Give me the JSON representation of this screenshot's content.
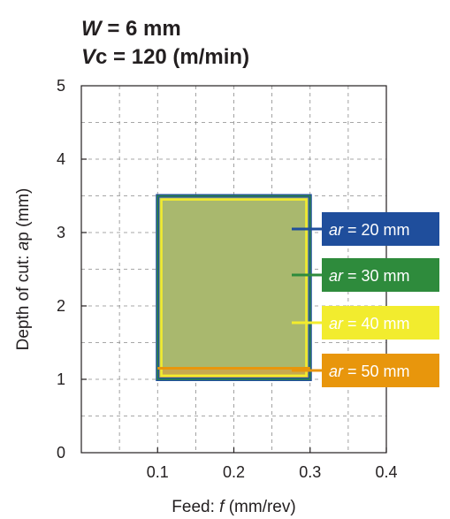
{
  "chart_data": {
    "type": "area",
    "title_lines": [
      {
        "italic": "W",
        "rest": " = 6 mm"
      },
      {
        "italic": "V",
        "rest": "c = 120 (m/min)"
      }
    ],
    "xlabel": {
      "pre": "Feed: ",
      "italic": "f",
      "post": " (mm/rev)"
    },
    "ylabel": {
      "pre": "Depth of cut: ",
      "italic": "a",
      "post": "p (mm)"
    },
    "xlim": [
      0,
      0.4
    ],
    "ylim": [
      0,
      5
    ],
    "x_ticks": [
      0.1,
      0.2,
      0.3,
      0.4
    ],
    "y_ticks": [
      0,
      1,
      2,
      3,
      4,
      5
    ],
    "x_tick_labels": [
      "0.1",
      "0.2",
      "0.3",
      "0.4"
    ],
    "y_tick_labels": [
      "0",
      "1",
      "2",
      "3",
      "4",
      "5"
    ],
    "grid": true,
    "grid_style": "dashed",
    "fill_color": "#a9b86e",
    "series": [
      {
        "name": "ar = 20 mm",
        "label_italic": "ar",
        "label_rest": " = 20 mm",
        "color": "#1f4e9c",
        "region": {
          "f": [
            0.1,
            0.3
          ],
          "ap": [
            1.0,
            3.5
          ]
        }
      },
      {
        "name": "ar = 30 mm",
        "label_italic": "ar",
        "label_rest": " = 30 mm",
        "color": "#2e8b3c",
        "region": {
          "f": [
            0.1,
            0.3
          ],
          "ap": [
            1.0,
            3.5
          ]
        }
      },
      {
        "name": "ar = 40 mm",
        "label_italic": "ar",
        "label_rest": " = 40 mm",
        "color": "#f2ec2e",
        "region": {
          "f": [
            0.105,
            0.295
          ],
          "ap": [
            1.05,
            3.45
          ]
        }
      },
      {
        "name": "ar = 50 mm",
        "label_italic": "ar",
        "label_rest": " = 50 mm",
        "color": "#e8960c",
        "region": {
          "f": [
            0.1,
            0.3
          ],
          "ap": [
            1.0,
            1.15
          ]
        }
      }
    ],
    "legend_placement": "right"
  }
}
